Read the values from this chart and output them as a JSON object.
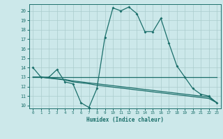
{
  "xlabel": "Humidex (Indice chaleur)",
  "bg_color": "#cce8ea",
  "grid_color": "#aacccc",
  "line_color": "#1a6e6a",
  "xlim": [
    -0.5,
    23.5
  ],
  "ylim": [
    9.7,
    20.7
  ],
  "yticks": [
    10,
    11,
    12,
    13,
    14,
    15,
    16,
    17,
    18,
    19,
    20
  ],
  "xticks": [
    0,
    1,
    2,
    3,
    4,
    5,
    6,
    7,
    8,
    9,
    10,
    11,
    12,
    13,
    14,
    15,
    16,
    17,
    18,
    19,
    20,
    21,
    22,
    23
  ],
  "lines": [
    {
      "x": [
        0,
        1,
        2,
        3,
        4,
        5,
        6,
        7,
        8,
        9,
        10,
        11,
        12,
        13,
        14,
        15,
        16,
        17,
        18,
        19,
        20,
        21,
        22,
        23
      ],
      "y": [
        14,
        13,
        13,
        13.8,
        12.5,
        12.3,
        10.3,
        9.8,
        11.8,
        17.2,
        20.3,
        20.0,
        20.4,
        19.7,
        17.8,
        17.8,
        19.2,
        16.6,
        14.2,
        13,
        11.8,
        11.2,
        11.0,
        10.3
      ],
      "marker": "D",
      "markersize": 2.0,
      "linewidth": 0.9
    },
    {
      "x": [
        0,
        1,
        2,
        3,
        4,
        5,
        6,
        7,
        8,
        9,
        10,
        11,
        12,
        13,
        14,
        15,
        16,
        17,
        18,
        19,
        20,
        21,
        22,
        23
      ],
      "y": [
        13,
        13,
        13,
        13,
        13,
        13,
        13,
        13,
        13,
        13,
        13,
        13,
        13,
        13,
        13,
        13,
        13,
        13,
        13,
        13,
        13,
        13,
        13,
        13
      ],
      "marker": null,
      "markersize": 0,
      "linewidth": 0.9
    },
    {
      "x": [
        0,
        1,
        2,
        3,
        4,
        5,
        6,
        7,
        8,
        9,
        10,
        11,
        12,
        13,
        14,
        15,
        16,
        17,
        18,
        19,
        20,
        21,
        22,
        23
      ],
      "y": [
        13,
        13,
        12.9,
        12.8,
        12.7,
        12.5,
        12.4,
        12.3,
        12.15,
        12.05,
        11.95,
        11.85,
        11.75,
        11.65,
        11.55,
        11.45,
        11.35,
        11.25,
        11.15,
        11.05,
        10.95,
        10.85,
        10.75,
        10.3
      ],
      "marker": null,
      "markersize": 0,
      "linewidth": 0.9
    },
    {
      "x": [
        0,
        1,
        2,
        3,
        4,
        5,
        6,
        7,
        8,
        9,
        10,
        11,
        12,
        13,
        14,
        15,
        16,
        17,
        18,
        19,
        20,
        21,
        22,
        23
      ],
      "y": [
        13,
        13,
        12.9,
        12.85,
        12.75,
        12.6,
        12.5,
        12.4,
        12.3,
        12.2,
        12.1,
        12.0,
        11.9,
        11.8,
        11.7,
        11.6,
        11.5,
        11.4,
        11.3,
        11.2,
        11.1,
        11.0,
        10.9,
        10.3
      ],
      "marker": null,
      "markersize": 0,
      "linewidth": 0.9
    }
  ]
}
